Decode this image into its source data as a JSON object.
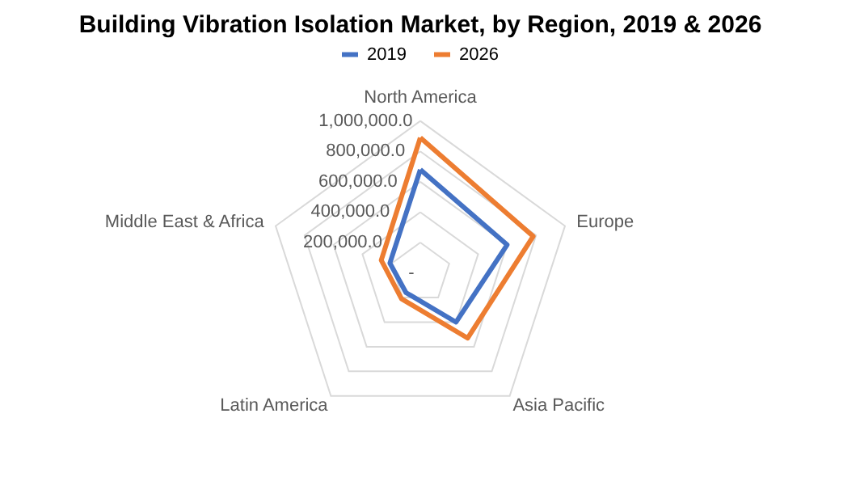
{
  "chart_data": {
    "type": "radar",
    "title": "Building Vibration Isolation Market, by Region, 2019 & 2026",
    "categories": [
      "North America",
      "Europe",
      "Asia Pacific",
      "Latin America",
      "Middle East & Africa"
    ],
    "series": [
      {
        "name": "2019",
        "color": "#4472c4",
        "values": [
          680000,
          600000,
          400000,
          160000,
          210000
        ]
      },
      {
        "name": "2026",
        "color": "#ed7d31",
        "values": [
          890000,
          780000,
          530000,
          210000,
          270000
        ]
      }
    ],
    "ylim": [
      0,
      1000000
    ],
    "yticks": [
      {
        "value": 0,
        "label": "-"
      },
      {
        "value": 200000,
        "label": "200,000.0"
      },
      {
        "value": 400000,
        "label": "400,000.0"
      },
      {
        "value": 600000,
        "label": "600,000.0"
      },
      {
        "value": 800000,
        "label": "800,000.0"
      },
      {
        "value": 1000000,
        "label": "1,000,000.0"
      }
    ],
    "grid": true,
    "legend": "top"
  }
}
